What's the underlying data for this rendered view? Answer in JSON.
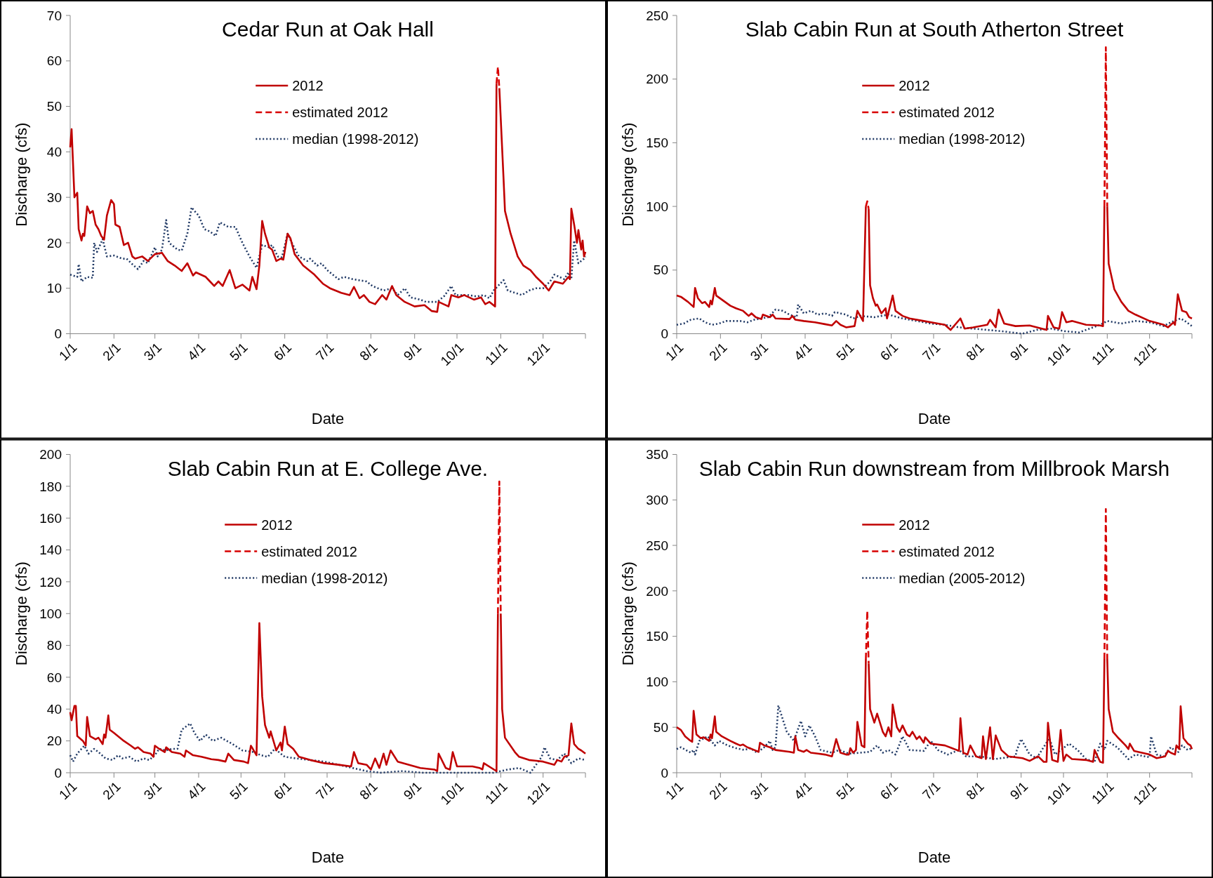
{
  "chart_data": [
    {
      "type": "line",
      "title": "Cedar Run at Oak Hall",
      "xlabel": "Date",
      "ylabel": "Discharge (cfs)",
      "legend": "top",
      "xlim": [
        "--01-01",
        "--12-31"
      ],
      "xticks": [
        {
          "value": "--01-01",
          "label": "1/1"
        },
        {
          "value": "--02-01",
          "label": "2/1"
        },
        {
          "value": "--03-01",
          "label": "3/1"
        },
        {
          "value": "--04-01",
          "label": "4/1"
        },
        {
          "value": "--05-01",
          "label": "5/1"
        },
        {
          "value": "--06-01",
          "label": "6/1"
        },
        {
          "value": "--07-01",
          "label": "7/1"
        },
        {
          "value": "--08-01",
          "label": "8/1"
        },
        {
          "value": "--09-01",
          "label": "9/1"
        },
        {
          "value": "--10-01",
          "label": "10/1"
        },
        {
          "value": "--11-01",
          "label": "11/1"
        },
        {
          "value": "--12-01",
          "label": "12/1"
        }
      ],
      "ylim": [
        0,
        70
      ],
      "yticks": [
        0,
        10,
        20,
        30,
        40,
        50,
        60,
        70
      ],
      "series": [
        {
          "name": "2012",
          "color": "#c00000",
          "line_style": "solid",
          "x": [
            "--01-01",
            "--01-02",
            "--01-04",
            "--01-06",
            "--01-07",
            "--01-09",
            "--01-10",
            "--01-11",
            "--01-13",
            "--01-15",
            "--01-17",
            "--01-19",
            "--01-21",
            "--01-23",
            "--01-25",
            "--01-27",
            "--01-30",
            "--02-01",
            "--02-02",
            "--02-05",
            "--02-08",
            "--02-11",
            "--02-14",
            "--02-16",
            "--02-21",
            "--02-25",
            "--03-01",
            "--03-06",
            "--03-10",
            "--03-15",
            "--03-20",
            "--03-24",
            "--03-28",
            "--03-30",
            "--04-06",
            "--04-09",
            "--04-12",
            "--04-15",
            "--04-18",
            "--04-23",
            "--04-27",
            "--05-02",
            "--05-07",
            "--05-09",
            "--05-12",
            "--05-14",
            "--05-16",
            "--05-18",
            "--05-21",
            "--05-23",
            "--05-26",
            "--05-29",
            "--05-31",
            "--06-03",
            "--06-05",
            "--06-08",
            "--06-14",
            "--06-22",
            "--06-28",
            "--07-03",
            "--07-11",
            "--07-17",
            "--07-20",
            "--07-24",
            "--07-27",
            "--07-31",
            "--08-04",
            "--08-09",
            "--08-12",
            "--08-16",
            "--08-19",
            "--08-25",
            "--09-01",
            "--09-08",
            "--09-13",
            "--09-17",
            "--09-18",
            "--09-25",
            "--09-27",
            "--10-02",
            "--10-06",
            "--10-13",
            "--10-18",
            "--10-21",
            "--10-24",
            "--10-28",
            "--10-29",
            "--10-30",
            "--10-31",
            "--11-03",
            "--11-04",
            "--11-08",
            "--11-13",
            "--11-17",
            "--11-22",
            "--11-26",
            "--12-01",
            "--12-05",
            "--12-09",
            "--12-15",
            "--12-19",
            "--12-20",
            "--12-21",
            "--12-23",
            "--12-25",
            "--12-26",
            "--12-28",
            "--12-29",
            "--12-30",
            "--12-31"
          ],
          "values": [
            41,
            45,
            30,
            31,
            23,
            20.5,
            22,
            21.5,
            28,
            26.5,
            27,
            24,
            23,
            21.5,
            20.7,
            26,
            29.4,
            28.5,
            24,
            23.5,
            19.5,
            20,
            17,
            16.5,
            17,
            16,
            17.5,
            17.8,
            16,
            15,
            13.8,
            15.5,
            12.8,
            13.5,
            12.5,
            11.5,
            10.5,
            11.5,
            10.5,
            14,
            10,
            10.8,
            9.5,
            12.5,
            9.8,
            15,
            24.8,
            22,
            19,
            18.5,
            16,
            16.5,
            16.3,
            22,
            21,
            17.5,
            15,
            13,
            11,
            10,
            9,
            8.5,
            10.3,
            7.8,
            8.5,
            7,
            6.5,
            8.5,
            7.5,
            10.5,
            8.5,
            7,
            6,
            6.3,
            5,
            4.8,
            7,
            6,
            8.5,
            8,
            8.5,
            7.5,
            8,
            6.5,
            7,
            6,
            55,
            null,
            54,
            34,
            27,
            22,
            17,
            15,
            14,
            12.5,
            11,
            9.5,
            11.5,
            11,
            12.5,
            12,
            27.5,
            24,
            20,
            22.8,
            18.5,
            20.5,
            17,
            18
          ]
        },
        {
          "name": "estimated 2012",
          "color": "#d80000",
          "line_style": "dashed",
          "x": [
            "--10-29",
            "--10-30",
            "--10-31"
          ],
          "values": [
            55,
            58.7,
            54
          ]
        },
        {
          "name": "median (1998-2012)",
          "color": "#1f3864",
          "line_style": "dotted",
          "x": [
            "--01-01",
            "--01-06",
            "--01-07",
            "--01-09",
            "--01-13",
            "--01-17",
            "--01-18",
            "--01-20",
            "--01-24",
            "--01-27",
            "--02-01",
            "--02-07",
            "--02-10",
            "--02-15",
            "--02-18",
            "--02-22",
            "--02-25",
            "--03-01",
            "--03-03",
            "--03-06",
            "--03-09",
            "--03-11",
            "--03-17",
            "--03-20",
            "--03-24",
            "--03-27",
            "--03-29",
            "--04-01",
            "--04-05",
            "--04-09",
            "--04-13",
            "--04-16",
            "--04-22",
            "--04-27",
            "--05-02",
            "--05-07",
            "--05-12",
            "--05-16",
            "--05-21",
            "--05-23",
            "--05-27",
            "--05-30",
            "--06-03",
            "--06-06",
            "--06-11",
            "--06-17",
            "--06-19",
            "--06-24",
            "--06-27",
            "--07-01",
            "--07-09",
            "--07-13",
            "--07-19",
            "--07-29",
            "--08-02",
            "--08-10",
            "--08-16",
            "--08-20",
            "--08-25",
            "--08-29",
            "--09-05",
            "--09-09",
            "--09-17",
            "--09-22",
            "--09-27",
            "--09-30",
            "--10-09",
            "--10-15",
            "--10-20",
            "--10-24",
            "--10-27",
            "--11-03",
            "--11-06",
            "--11-11",
            "--11-16",
            "--11-21",
            "--11-26",
            "--12-01",
            "--12-06",
            "--12-09",
            "--12-16",
            "--12-19",
            "--12-21",
            "--12-23",
            "--12-26",
            "--12-28",
            "--12-30",
            "--12-31"
          ],
          "values": [
            13,
            12.5,
            15.3,
            11.5,
            12.5,
            12.3,
            20,
            18,
            20.8,
            17,
            17.2,
            16.5,
            16.5,
            15,
            14.2,
            16,
            15.5,
            19,
            17,
            18.5,
            25,
            20,
            18.5,
            18.3,
            22,
            27.8,
            27,
            26,
            23,
            22.5,
            21.5,
            24.5,
            23.5,
            23.5,
            20,
            17,
            14.5,
            19.5,
            19,
            19.5,
            17,
            16.8,
            22,
            20,
            17,
            16,
            16.5,
            15,
            15.5,
            14,
            12,
            12.5,
            12,
            11.5,
            10.5,
            9.5,
            10,
            8.5,
            10,
            8,
            7.5,
            7,
            7,
            8.3,
            10.5,
            8.5,
            8.5,
            8.2,
            8.5,
            7.8,
            9.5,
            11.8,
            9.5,
            9,
            8.5,
            9.5,
            10,
            10,
            11.5,
            13,
            12,
            13.5,
            12,
            20.5,
            15.5,
            16,
            16.5,
            17
          ]
        }
      ]
    },
    {
      "type": "line",
      "title": "Slab Cabin Run at South Atherton Street",
      "xlabel": "Date",
      "ylabel": "Discharge (cfs)",
      "legend": "top",
      "xlim": [
        "--01-01",
        "--12-31"
      ],
      "xticks": [
        {
          "value": "--01-01",
          "label": "1/1"
        },
        {
          "value": "--02-01",
          "label": "2/1"
        },
        {
          "value": "--03-01",
          "label": "3/1"
        },
        {
          "value": "--04-01",
          "label": "4/1"
        },
        {
          "value": "--05-01",
          "label": "5/1"
        },
        {
          "value": "--06-01",
          "label": "6/1"
        },
        {
          "value": "--07-01",
          "label": "7/1"
        },
        {
          "value": "--08-01",
          "label": "8/1"
        },
        {
          "value": "--09-01",
          "label": "9/1"
        },
        {
          "value": "--10-01",
          "label": "10/1"
        },
        {
          "value": "--11-01",
          "label": "11/1"
        },
        {
          "value": "--12-01",
          "label": "12/1"
        }
      ],
      "ylim": [
        0,
        250
      ],
      "yticks": [
        0,
        50,
        100,
        150,
        200,
        250
      ],
      "series": [
        {
          "name": "2012",
          "color": "#c00000",
          "line_style": "solid",
          "x": [
            "--01-01",
            "--01-04",
            "--01-09",
            "--01-13",
            "--01-14",
            "--01-16",
            "--01-19",
            "--01-21",
            "--01-24",
            "--01-25",
            "--01-26",
            "--01-28",
            "--01-29",
            "--02-03",
            "--02-08",
            "--02-12",
            "--02-17",
            "--02-18",
            "--02-21",
            "--02-23",
            "--02-26",
            "--03-01",
            "--03-02",
            "--03-07",
            "--03-09",
            "--03-11",
            "--03-21",
            "--03-23",
            "--03-25",
            "--03-31",
            "--04-08",
            "--04-15",
            "--04-20",
            "--04-23",
            "--04-26",
            "--04-30",
            "--05-06",
            "--05-08",
            "--05-12",
            "--05-14",
            "--05-15",
            "--05-16",
            "--05-17",
            "--05-19",
            "--05-21",
            "--05-22",
            "--05-25",
            "--05-28",
            "--05-29",
            "--06-02",
            "--06-04",
            "--06-09",
            "--06-14",
            "--06-24",
            "--07-04",
            "--07-09",
            "--07-13",
            "--07-20",
            "--07-23",
            "--07-29",
            "--08-08",
            "--08-10",
            "--08-14",
            "--08-16",
            "--08-20",
            "--08-28",
            "--09-07",
            "--09-19",
            "--09-20",
            "--09-24",
            "--09-28",
            "--09-30",
            "--10-03",
            "--10-07",
            "--10-17",
            "--10-27",
            "--10-29",
            "--10-30",
            "--10-31",
            "--11-01",
            "--11-02",
            "--11-06",
            "--11-11",
            "--11-16",
            "--11-21",
            "--12-01",
            "--12-11",
            "--12-14",
            "--12-18",
            "--12-19",
            "--12-21",
            "--12-24",
            "--12-27",
            "--12-29",
            "--12-31"
          ],
          "values": [
            30,
            29,
            25,
            21,
            36,
            28,
            24,
            25,
            21,
            26,
            23,
            36,
            30,
            26,
            22,
            20,
            18,
            17,
            14,
            16,
            13,
            11.5,
            15,
            13,
            15,
            12,
            11.5,
            14,
            11,
            10,
            9,
            7.5,
            6.5,
            10,
            7,
            5,
            6,
            18,
            10,
            100,
            null,
            98,
            38,
            28,
            22,
            23,
            16,
            20,
            12,
            30,
            18,
            14,
            12,
            10,
            8,
            7,
            3,
            12,
            4,
            5,
            7,
            11,
            5,
            19,
            8,
            6,
            6.5,
            3,
            14,
            5,
            4,
            17,
            9,
            10,
            7,
            6.5,
            6,
            100,
            null,
            100,
            55,
            35,
            25,
            18,
            15,
            10,
            7,
            5,
            9,
            7,
            31,
            18,
            17,
            13,
            12
          ]
        },
        {
          "name": "estimated 2012",
          "color": "#d80000",
          "line_style": "dashed",
          "x": [
            "--05-14",
            "--05-15",
            "--05-16",
            "--07-01",
            "--10-30",
            "--10-31",
            "--11-01"
          ],
          "values": [
            100,
            104,
            98,
            null,
            100,
            225,
            100
          ]
        },
        {
          "name": "median (1998-2012)",
          "color": "#1f3864",
          "line_style": "dotted",
          "x": [
            "--01-01",
            "--01-06",
            "--01-11",
            "--01-17",
            "--01-21",
            "--01-26",
            "--01-31",
            "--02-05",
            "--02-15",
            "--02-20",
            "--02-25",
            "--03-01",
            "--03-06",
            "--03-11",
            "--03-16",
            "--03-21",
            "--03-26",
            "--03-27",
            "--03-31",
            "--04-05",
            "--04-10",
            "--04-15",
            "--04-20",
            "--04-22",
            "--04-30",
            "--05-05",
            "--05-10",
            "--05-20",
            "--05-25",
            "--05-30",
            "--06-09",
            "--06-19",
            "--06-29",
            "--07-09",
            "--07-19",
            "--07-29",
            "--08-08",
            "--08-18",
            "--09-02",
            "--09-12",
            "--09-22",
            "--10-02",
            "--10-12",
            "--10-22",
            "--10-27",
            "--11-01",
            "--11-11",
            "--11-21",
            "--12-01",
            "--12-11",
            "--12-16",
            "--12-23",
            "--12-26",
            "--12-31"
          ],
          "values": [
            7,
            8,
            11,
            12,
            9,
            7,
            8,
            10,
            10,
            9,
            11,
            12,
            13,
            19,
            18,
            15,
            13,
            23,
            16,
            18,
            15,
            16,
            14,
            17,
            15,
            12,
            14,
            13,
            14,
            15,
            12,
            10,
            8,
            7,
            5,
            4,
            3,
            2,
            0,
            3,
            4,
            2,
            1,
            5,
            7,
            10,
            8,
            10,
            9,
            6,
            9,
            12,
            10,
            6
          ]
        }
      ]
    },
    {
      "type": "line",
      "title": "Slab Cabin Run at E. College Ave.",
      "xlabel": "Date",
      "ylabel": "Discharge (cfs)",
      "legend": "top left",
      "xlim": [
        "--01-01",
        "--12-31"
      ],
      "xticks": [
        {
          "value": "--01-01",
          "label": "1/1"
        },
        {
          "value": "--02-01",
          "label": "2/1"
        },
        {
          "value": "--03-01",
          "label": "3/1"
        },
        {
          "value": "--04-01",
          "label": "4/1"
        },
        {
          "value": "--05-01",
          "label": "5/1"
        },
        {
          "value": "--06-01",
          "label": "6/1"
        },
        {
          "value": "--07-01",
          "label": "7/1"
        },
        {
          "value": "--08-01",
          "label": "8/1"
        },
        {
          "value": "--09-01",
          "label": "9/1"
        },
        {
          "value": "--10-01",
          "label": "10/1"
        },
        {
          "value": "--11-01",
          "label": "11/1"
        },
        {
          "value": "--12-01",
          "label": "12/1"
        }
      ],
      "ylim": [
        0,
        200
      ],
      "yticks": [
        0,
        20,
        40,
        60,
        80,
        100,
        120,
        140,
        160,
        180,
        200
      ],
      "series": [
        {
          "name": "2012",
          "color": "#c00000",
          "line_style": "solid",
          "x": [
            "--01-01",
            "--01-02",
            "--01-04",
            "--01-05",
            "--01-06",
            "--01-10",
            "--01-12",
            "--01-13",
            "--01-15",
            "--01-19",
            "--01-21",
            "--01-24",
            "--01-25",
            "--01-26",
            "--01-28",
            "--01-29",
            "--02-01",
            "--02-08",
            "--02-13",
            "--02-16",
            "--02-18",
            "--02-22",
            "--02-27",
            "--02-29",
            "--03-01",
            "--03-04",
            "--03-08",
            "--03-09",
            "--03-13",
            "--03-19",
            "--03-22",
            "--03-23",
            "--03-28",
            "--04-03",
            "--04-10",
            "--04-15",
            "--04-20",
            "--04-22",
            "--04-26",
            "--05-03",
            "--05-06",
            "--05-08",
            "--05-12",
            "--05-14",
            "--05-16",
            "--05-18",
            "--05-21",
            "--05-22",
            "--05-26",
            "--05-29",
            "--05-30",
            "--06-01",
            "--06-03",
            "--06-07",
            "--06-11",
            "--06-19",
            "--06-29",
            "--07-09",
            "--07-18",
            "--07-20",
            "--07-23",
            "--07-29",
            "--08-01",
            "--08-04",
            "--08-07",
            "--08-10",
            "--08-12",
            "--08-15",
            "--08-20",
            "--08-28",
            "--09-05",
            "--09-15",
            "--09-17",
            "--09-18",
            "--09-23",
            "--09-26",
            "--09-28",
            "--10-01",
            "--10-12",
            "--10-17",
            "--10-19",
            "--10-20",
            "--10-29",
            "--10-30",
            "--10-31",
            "--11-01",
            "--11-02",
            "--11-04",
            "--11-11",
            "--11-14",
            "--11-21",
            "--12-01",
            "--12-09",
            "--12-11",
            "--12-14",
            "--12-16",
            "--12-19",
            "--12-21",
            "--12-23",
            "--12-26",
            "--12-28",
            "--12-31"
          ],
          "values": [
            38,
            33,
            42,
            42,
            23,
            20,
            17,
            35,
            23,
            21,
            22,
            18,
            24,
            22,
            36,
            27,
            25,
            20,
            17,
            15,
            16,
            13,
            12,
            10,
            17,
            15,
            13,
            16,
            13,
            12,
            10,
            14,
            11,
            10,
            8.5,
            8,
            7,
            12,
            8,
            7,
            6,
            17,
            11,
            94,
            48,
            30,
            22,
            26,
            14,
            19,
            14,
            29,
            18,
            15,
            10,
            8,
            6,
            5,
            4,
            13,
            6,
            5,
            2,
            9,
            3,
            12,
            5,
            14,
            7,
            5,
            3,
            2,
            1,
            12,
            3,
            2,
            13,
            4,
            4,
            3,
            2,
            6,
            1,
            100,
            null,
            100,
            40,
            22,
            13,
            10,
            8,
            7,
            5,
            8,
            7,
            10,
            11,
            31,
            18,
            15,
            14,
            12
          ]
        },
        {
          "name": "estimated 2012",
          "color": "#d80000",
          "line_style": "dashed",
          "x": [
            "--10-30",
            "--10-31",
            "--11-01"
          ],
          "values": [
            100,
            183,
            100
          ]
        },
        {
          "name": "median (1998-2012)",
          "color": "#1f3864",
          "line_style": "dotted",
          "x": [
            "--01-01",
            "--01-03",
            "--01-06",
            "--01-11",
            "--01-14",
            "--01-18",
            "--01-21",
            "--01-26",
            "--01-31",
            "--02-04",
            "--02-07",
            "--02-12",
            "--02-17",
            "--02-22",
            "--02-26",
            "--03-01",
            "--03-04",
            "--03-09",
            "--03-13",
            "--03-17",
            "--03-20",
            "--03-26",
            "--03-29",
            "--04-02",
            "--04-06",
            "--04-11",
            "--04-17",
            "--04-25",
            "--05-02",
            "--05-10",
            "--05-15",
            "--05-20",
            "--05-25",
            "--06-01",
            "--06-09",
            "--06-19",
            "--06-29",
            "--07-09",
            "--07-19",
            "--07-29",
            "--08-08",
            "--08-23",
            "--09-07",
            "--09-27",
            "--10-17",
            "--10-27",
            "--11-06",
            "--11-14",
            "--11-22",
            "--11-26",
            "--11-30",
            "--12-02",
            "--12-06",
            "--12-11",
            "--12-16",
            "--12-21",
            "--12-26",
            "--12-31"
          ],
          "values": [
            11,
            7,
            12,
            17,
            12,
            15,
            13,
            9,
            8,
            11,
            9,
            10,
            7,
            9,
            8,
            11,
            15,
            14,
            15,
            15,
            27,
            31,
            25,
            20,
            24,
            20,
            22,
            18,
            14,
            13,
            11,
            10,
            15,
            10,
            9,
            8,
            7,
            5,
            3,
            1,
            0,
            1,
            0,
            0,
            0,
            0,
            2,
            3,
            0,
            5,
            10,
            16,
            9,
            8,
            12,
            6,
            9,
            8
          ]
        }
      ]
    },
    {
      "type": "line",
      "title": "Slab Cabin Run downstream from Millbrook Marsh",
      "xlabel": "Date",
      "ylabel": "Discharge (cfs)",
      "legend": "top",
      "xlim": [
        "--01-01",
        "--12-31"
      ],
      "xticks": [
        {
          "value": "--01-01",
          "label": "1/1"
        },
        {
          "value": "--02-01",
          "label": "2/1"
        },
        {
          "value": "--03-01",
          "label": "3/1"
        },
        {
          "value": "--04-01",
          "label": "4/1"
        },
        {
          "value": "--05-01",
          "label": "5/1"
        },
        {
          "value": "--06-01",
          "label": "6/1"
        },
        {
          "value": "--07-01",
          "label": "7/1"
        },
        {
          "value": "--08-01",
          "label": "8/1"
        },
        {
          "value": "--09-01",
          "label": "9/1"
        },
        {
          "value": "--10-01",
          "label": "10/1"
        },
        {
          "value": "--11-01",
          "label": "11/1"
        },
        {
          "value": "--12-01",
          "label": "12/1"
        }
      ],
      "ylim": [
        0,
        350
      ],
      "yticks": [
        0,
        50,
        100,
        150,
        200,
        250,
        300,
        350
      ],
      "series": [
        {
          "name": "2012",
          "color": "#c00000",
          "line_style": "solid",
          "x": [
            "--01-01",
            "--01-04",
            "--01-07",
            "--01-10",
            "--01-12",
            "--01-13",
            "--01-15",
            "--01-18",
            "--01-20",
            "--01-24",
            "--01-25",
            "--01-26",
            "--01-28",
            "--01-29",
            "--02-02",
            "--02-08",
            "--02-12",
            "--02-15",
            "--02-17",
            "--02-20",
            "--02-25",
            "--02-28",
            "--02-29",
            "--03-03",
            "--03-07",
            "--03-11",
            "--03-21",
            "--03-24",
            "--03-25",
            "--03-27",
            "--03-31",
            "--04-02",
            "--04-05",
            "--04-10",
            "--04-15",
            "--04-20",
            "--04-23",
            "--04-26",
            "--04-30",
            "--05-02",
            "--05-03",
            "--05-05",
            "--05-07",
            "--05-08",
            "--05-11",
            "--05-13",
            "--05-14",
            "--05-15",
            "--05-16",
            "--05-17",
            "--05-20",
            "--05-22",
            "--05-26",
            "--05-28",
            "--05-30",
            "--06-01",
            "--06-02",
            "--06-05",
            "--06-07",
            "--06-09",
            "--06-12",
            "--06-14",
            "--06-16",
            "--06-19",
            "--06-21",
            "--06-24",
            "--06-25",
            "--06-29",
            "--07-09",
            "--07-14",
            "--07-19",
            "--07-20",
            "--07-22",
            "--07-25",
            "--07-27",
            "--07-31",
            "--08-04",
            "--08-05",
            "--08-07",
            "--08-10",
            "--08-12",
            "--08-14",
            "--08-18",
            "--08-23",
            "--09-02",
            "--09-07",
            "--09-13",
            "--09-17",
            "--09-19",
            "--09-20",
            "--09-23",
            "--09-27",
            "--09-29",
            "--10-01",
            "--10-03",
            "--10-07",
            "--10-17",
            "--10-22",
            "--10-23",
            "--10-27",
            "--10-29",
            "--10-30",
            "--10-31",
            "--11-01",
            "--11-02",
            "--11-05",
            "--11-09",
            "--11-14",
            "--11-16",
            "--11-17",
            "--11-20",
            "--12-01",
            "--12-06",
            "--12-12",
            "--12-14",
            "--12-16",
            "--12-19",
            "--12-20",
            "--12-22",
            "--12-23",
            "--12-25",
            "--12-28",
            "--12-30",
            "--12-31"
          ],
          "values": [
            50,
            47,
            40,
            36,
            34,
            68,
            42,
            38,
            39,
            35,
            42,
            38,
            62,
            45,
            40,
            35,
            32,
            30,
            31,
            28,
            25,
            23,
            33,
            30,
            28,
            25,
            23,
            22,
            40,
            25,
            23,
            25,
            22,
            21,
            20,
            18,
            37,
            22,
            20,
            20,
            27,
            22,
            25,
            56,
            30,
            28,
            125,
            null,
            120,
            70,
            55,
            65,
            45,
            40,
            50,
            40,
            75,
            50,
            45,
            52,
            42,
            40,
            45,
            37,
            40,
            33,
            39,
            32,
            30,
            27,
            24,
            60,
            22,
            20,
            30,
            18,
            16,
            40,
            15,
            50,
            15,
            41,
            25,
            18,
            16,
            13,
            18,
            12,
            12,
            55,
            14,
            12,
            47,
            13,
            20,
            15,
            14,
            12,
            25,
            12,
            11,
            125,
            null,
            125,
            70,
            45,
            38,
            30,
            26,
            32,
            24,
            20,
            16,
            18,
            24,
            22,
            20,
            30,
            26,
            73,
            38,
            32,
            30,
            26
          ]
        },
        {
          "name": "estimated 2012",
          "color": "#d80000",
          "line_style": "dashed",
          "x": [
            "--05-14",
            "--05-15",
            "--05-16",
            "--07-01",
            "--10-30",
            "--10-31",
            "--11-01"
          ],
          "values": [
            125,
            178,
            120,
            null,
            125,
            290,
            125
          ]
        },
        {
          "name": "median (2005-2012)",
          "color": "#1f3864",
          "line_style": "dotted",
          "x": [
            "--01-01",
            "--01-04",
            "--01-11",
            "--01-13",
            "--01-14",
            "--01-17",
            "--01-23",
            "--01-28",
            "--01-31",
            "--02-06",
            "--02-12",
            "--02-18",
            "--02-22",
            "--02-27",
            "--03-03",
            "--03-07",
            "--03-09",
            "--03-11",
            "--03-13",
            "--03-19",
            "--03-24",
            "--03-29",
            "--04-01",
            "--04-04",
            "--04-08",
            "--04-12",
            "--04-20",
            "--04-25",
            "--05-02",
            "--05-10",
            "--05-17",
            "--05-22",
            "--05-26",
            "--05-30",
            "--06-04",
            "--06-09",
            "--06-14",
            "--06-24",
            "--06-29",
            "--07-04",
            "--07-11",
            "--07-19",
            "--07-24",
            "--08-03",
            "--08-13",
            "--08-23",
            "--08-28",
            "--08-29",
            "--09-01",
            "--09-07",
            "--09-12",
            "--09-21",
            "--09-25",
            "--10-05",
            "--10-11",
            "--10-17",
            "--10-23",
            "--10-27",
            "--10-30",
            "--11-01",
            "--11-08",
            "--11-16",
            "--11-21",
            "--12-01",
            "--12-02",
            "--12-06",
            "--12-11",
            "--12-16",
            "--12-21",
            "--12-24",
            "--12-28",
            "--12-31"
          ],
          "values": [
            26,
            28,
            22,
            25,
            20,
            35,
            40,
            30,
            35,
            30,
            27,
            25,
            27,
            22,
            28,
            35,
            25,
            28,
            74,
            45,
            35,
            57,
            40,
            52,
            40,
            25,
            22,
            25,
            21,
            22,
            23,
            30,
            22,
            25,
            20,
            40,
            25,
            24,
            35,
            25,
            20,
            25,
            18,
            18,
            15,
            17,
            18,
            25,
            37,
            20,
            16,
            38,
            20,
            32,
            25,
            15,
            12,
            32,
            25,
            35,
            28,
            15,
            20,
            17,
            40,
            20,
            18,
            28,
            22,
            30,
            25,
            27
          ]
        }
      ]
    }
  ]
}
